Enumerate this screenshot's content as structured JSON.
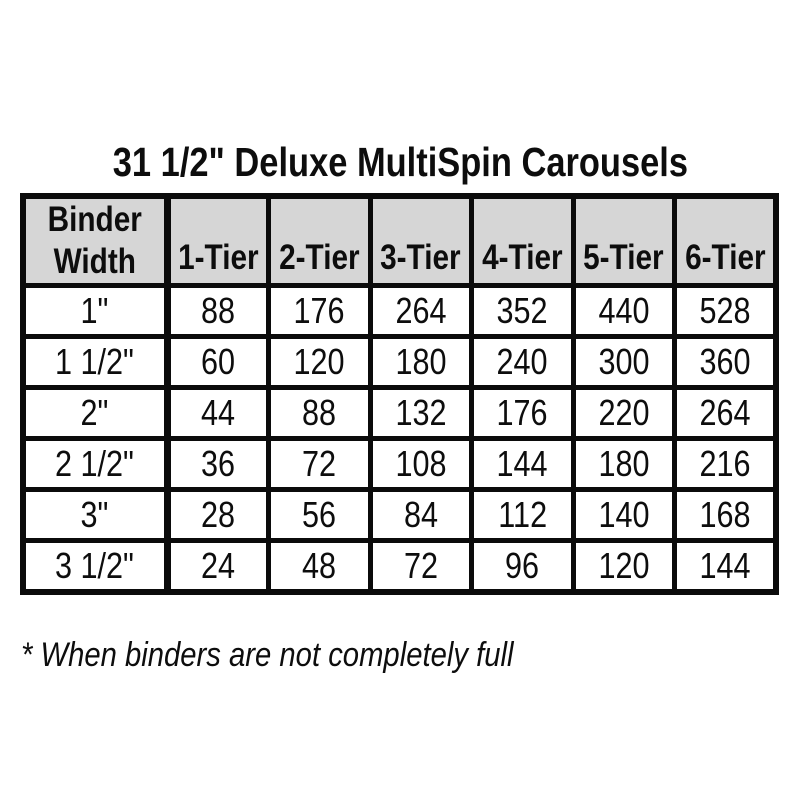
{
  "title": "31 1/2\" Deluxe MultiSpin Carousels",
  "footnote": "* When binders are not completely full",
  "colors": {
    "background": "#ffffff",
    "header_bg": "#d6d6d6",
    "border": "#0b0b0b",
    "text": "#0d0d0d"
  },
  "table": {
    "corner_header": {
      "line1": "Binder",
      "line2": "Width"
    },
    "columns": [
      "1-Tier",
      "2-Tier",
      "3-Tier",
      "4-Tier",
      "5-Tier",
      "6-Tier"
    ],
    "rows": [
      {
        "binder_width": "1\"",
        "values": [
          "88",
          "176",
          "264",
          "352",
          "440",
          "528"
        ]
      },
      {
        "binder_width": "1 1/2\"",
        "values": [
          "60",
          "120",
          "180",
          "240",
          "300",
          "360"
        ]
      },
      {
        "binder_width": "2\"",
        "values": [
          "44",
          "88",
          "132",
          "176",
          "220",
          "264"
        ]
      },
      {
        "binder_width": "2 1/2\"",
        "values": [
          "36",
          "72",
          "108",
          "144",
          "180",
          "216"
        ]
      },
      {
        "binder_width": "3\"",
        "values": [
          "28",
          "56",
          "84",
          "112",
          "140",
          "168"
        ]
      },
      {
        "binder_width": "3 1/2\"",
        "values": [
          "24",
          "48",
          "72",
          "96",
          "120",
          "144"
        ]
      }
    ]
  },
  "chart_data": {
    "type": "table",
    "title": "31 1/2\" Deluxe MultiSpin Carousels",
    "columns": [
      "Binder Width",
      "1-Tier",
      "2-Tier",
      "3-Tier",
      "4-Tier",
      "5-Tier",
      "6-Tier"
    ],
    "rows": [
      [
        "1\"",
        88,
        176,
        264,
        352,
        440,
        528
      ],
      [
        "1 1/2\"",
        60,
        120,
        180,
        240,
        300,
        360
      ],
      [
        "2\"",
        44,
        88,
        132,
        176,
        220,
        264
      ],
      [
        "2 1/2\"",
        36,
        72,
        108,
        144,
        180,
        216
      ],
      [
        "3\"",
        28,
        56,
        84,
        112,
        140,
        168
      ],
      [
        "3 1/2\"",
        24,
        48,
        72,
        96,
        120,
        144
      ]
    ],
    "footnote": "* When binders are not completely full"
  }
}
